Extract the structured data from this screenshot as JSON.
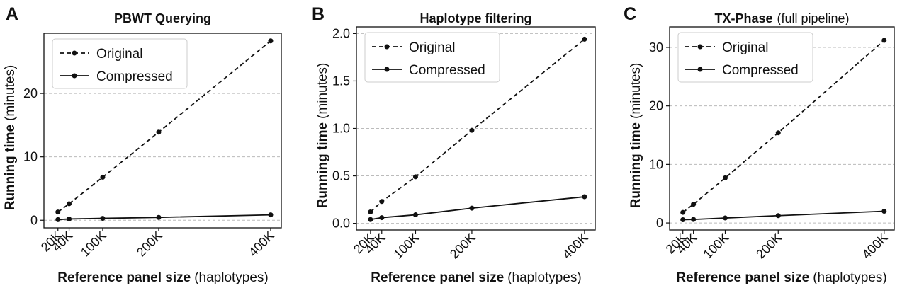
{
  "chart_data": [
    {
      "type": "line",
      "panel": "A",
      "title": "PBWT Querying",
      "xlabel": "Reference panel size",
      "xlabel_unit": "(haplotypes)",
      "ylabel": "Running time",
      "ylabel_unit": "(minutes)",
      "x": [
        20000,
        40000,
        100000,
        200000,
        400000
      ],
      "series": [
        {
          "name": "Original",
          "color": "#111111",
          "linestyle": "dashed",
          "values": [
            1.3,
            2.6,
            6.8,
            13.9,
            28.3
          ]
        },
        {
          "name": "Compressed",
          "color": "#111111",
          "linestyle": "solid",
          "values": [
            0.1,
            0.2,
            0.3,
            0.45,
            0.85
          ]
        }
      ],
      "xlim": [
        -5000,
        419000
      ],
      "xticks": [
        {
          "value": 20000,
          "label": "20K"
        },
        {
          "value": 40000,
          "label": "40K"
        },
        {
          "value": 100000,
          "label": "100K"
        },
        {
          "value": 200000,
          "label": "200K"
        },
        {
          "value": 400000,
          "label": "400K"
        }
      ],
      "ylim": [
        -1.2,
        29.5
      ],
      "yticks": [
        0,
        10,
        20
      ],
      "grid": "y",
      "legend": "upper left"
    },
    {
      "type": "line",
      "panel": "B",
      "title": "Haplotype filtering",
      "xlabel": "Reference panel size",
      "xlabel_unit": "(haplotypes)",
      "ylabel": "Running time",
      "ylabel_unit": "(minutes)",
      "x": [
        20000,
        40000,
        100000,
        200000,
        400000
      ],
      "series": [
        {
          "name": "Original",
          "color": "#111111",
          "linestyle": "dashed",
          "values": [
            0.12,
            0.23,
            0.49,
            0.98,
            1.94
          ]
        },
        {
          "name": "Compressed",
          "color": "#111111",
          "linestyle": "solid",
          "values": [
            0.04,
            0.06,
            0.09,
            0.16,
            0.28
          ]
        }
      ],
      "xlim": [
        -5000,
        419000
      ],
      "xticks": [
        {
          "value": 20000,
          "label": "20K"
        },
        {
          "value": 40000,
          "label": "40K"
        },
        {
          "value": 100000,
          "label": "100K"
        },
        {
          "value": 200000,
          "label": "200K"
        },
        {
          "value": 400000,
          "label": "400K"
        }
      ],
      "ylim": [
        -0.07,
        2.07
      ],
      "yticks": [
        {
          "value": 0,
          "label": "0.0"
        },
        0.5,
        {
          "value": 1,
          "label": "1.0"
        },
        1.5,
        {
          "value": 2,
          "label": "2.0"
        }
      ],
      "grid": "y",
      "legend": "upper left"
    },
    {
      "type": "line",
      "panel": "C",
      "title": "TX-Phase",
      "title_note": "(full pipeline)",
      "xlabel": "Reference panel size",
      "xlabel_unit": "(haplotypes)",
      "ylabel": "Running time",
      "ylabel_unit": "(minutes)",
      "x": [
        20000,
        40000,
        100000,
        200000,
        400000
      ],
      "series": [
        {
          "name": "Original",
          "color": "#111111",
          "linestyle": "dashed",
          "values": [
            1.8,
            3.2,
            7.7,
            15.4,
            31.2
          ]
        },
        {
          "name": "Compressed",
          "color": "#111111",
          "linestyle": "solid",
          "values": [
            0.55,
            0.6,
            0.85,
            1.25,
            2.0
          ]
        }
      ],
      "xlim": [
        -5000,
        419000
      ],
      "xticks": [
        {
          "value": 20000,
          "label": "20K"
        },
        {
          "value": 40000,
          "label": "40K"
        },
        {
          "value": 100000,
          "label": "100K"
        },
        {
          "value": 200000,
          "label": "200K"
        },
        {
          "value": 400000,
          "label": "400K"
        }
      ],
      "ylim": [
        -1.2,
        33.5
      ],
      "yticks": [
        0,
        10,
        20,
        30
      ],
      "grid": "y",
      "legend": "upper left"
    }
  ]
}
